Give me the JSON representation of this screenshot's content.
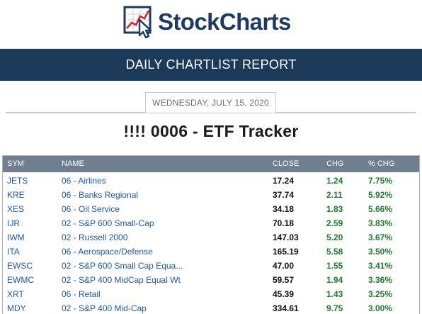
{
  "brand": {
    "name": "StockCharts"
  },
  "report": {
    "title": "DAILY CHARTLIST REPORT",
    "date": "WEDNESDAY, JULY 15, 2020"
  },
  "chartlist": {
    "title": "!!!! 0006 - ETF Tracker"
  },
  "table": {
    "headers": {
      "sym": "SYM",
      "name": "NAME",
      "close": "CLOSE",
      "chg": "CHG",
      "pct": "% CHG"
    },
    "rows": [
      {
        "sym": "JETS",
        "name": "06 - Airlines",
        "close": "17.24",
        "chg": "1.24",
        "pct": "7.75%"
      },
      {
        "sym": "KRE",
        "name": "06 - Banks Regional",
        "close": "37.74",
        "chg": "2.11",
        "pct": "5.92%"
      },
      {
        "sym": "XES",
        "name": "06 - Oil Service",
        "close": "34.18",
        "chg": "1.83",
        "pct": "5.66%"
      },
      {
        "sym": "IJR",
        "name": "02 - S&P 600 Small-Cap",
        "close": "70.18",
        "chg": "2.59",
        "pct": "3.83%"
      },
      {
        "sym": "IWM",
        "name": "02 - Russell 2000",
        "close": "147.03",
        "chg": "5.20",
        "pct": "3.67%"
      },
      {
        "sym": "ITA",
        "name": "06 - Aerospace/Defense",
        "close": "165.19",
        "chg": "5.58",
        "pct": "3.50%"
      },
      {
        "sym": "EWSC",
        "name": "02 - S&P 600 Small Cap Equa...",
        "close": "47.00",
        "chg": "1.55",
        "pct": "3.41%"
      },
      {
        "sym": "EWMC",
        "name": "02 - S&P 400 MidCap Equal Wt",
        "close": "59.57",
        "chg": "1.94",
        "pct": "3.36%"
      },
      {
        "sym": "XRT",
        "name": "06 - Retail",
        "close": "45.39",
        "chg": "1.43",
        "pct": "3.25%"
      },
      {
        "sym": "MDY",
        "name": "02 - S&P 400 Mid-Cap",
        "close": "334.61",
        "chg": "9.75",
        "pct": "3.00%"
      }
    ]
  },
  "colors": {
    "banner": "#1c3b5a",
    "header_row": "#6f7f8f",
    "link": "#2057a6",
    "positive": "#1f7a2f"
  },
  "icons": {
    "logo": "stockcharts-chart-cursor-logo-icon"
  }
}
